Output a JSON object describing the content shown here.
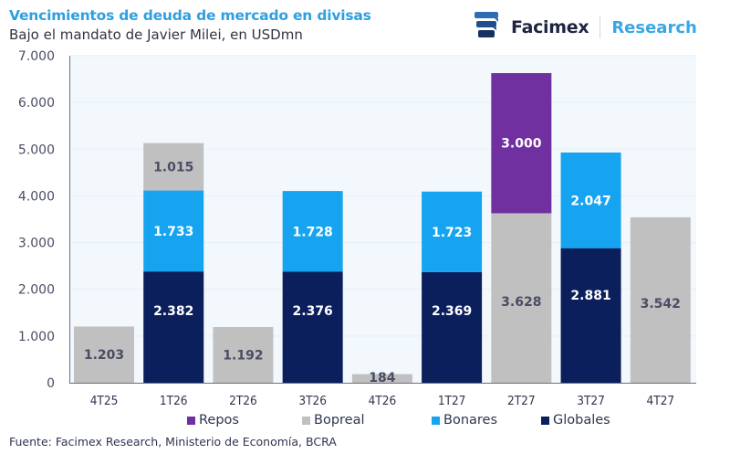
{
  "header": {
    "title": "Vencimientos de deuda de mercado en divisas",
    "subtitle": "Bajo el mandato de Javier Milei, en USDmn"
  },
  "logo": {
    "brand": "Facimex",
    "division": "Research",
    "icon": "facimex-logo-icon"
  },
  "source": "Fuente: Facimex Research, Ministerio de Economía, BCRA",
  "chart_data": {
    "type": "bar",
    "stacked": true,
    "title": "Vencimientos de deuda de mercado en divisas",
    "subtitle": "Bajo el mandato de Javier Milei, en USDmn",
    "xlabel": "",
    "ylabel": "",
    "ylim": [
      0,
      7000
    ],
    "yticks": [
      0,
      1000,
      2000,
      3000,
      4000,
      5000,
      6000,
      7000
    ],
    "ytick_labels": [
      "0",
      "1.000",
      "2.000",
      "3.000",
      "4.000",
      "5.000",
      "6.000",
      "7.000"
    ],
    "grid": true,
    "legend_position": "bottom",
    "categories": [
      "4T25",
      "1T26",
      "2T26",
      "3T26",
      "4T26",
      "1T27",
      "2T27",
      "3T27",
      "4T27"
    ],
    "series": [
      {
        "name": "Globales",
        "color": "#0a1f5c",
        "label_color": "#ffffff",
        "values": [
          0,
          2382,
          0,
          2376,
          0,
          2369,
          0,
          2881,
          0
        ],
        "labels": [
          "",
          "2.382",
          "",
          "2.376",
          "",
          "2.369",
          "",
          "2.881",
          ""
        ]
      },
      {
        "name": "Bonares",
        "color": "#16a4f0",
        "label_color": "#ffffff",
        "values": [
          0,
          1733,
          0,
          1728,
          0,
          1723,
          0,
          2047,
          0
        ],
        "labels": [
          "",
          "1.733",
          "",
          "1.728",
          "",
          "1.723",
          "",
          "2.047",
          ""
        ]
      },
      {
        "name": "Bopreal",
        "color": "#c0c0c0",
        "label_color": "#4a4d63",
        "values": [
          1203,
          1015,
          1192,
          0,
          184,
          0,
          3628,
          0,
          3542
        ],
        "labels": [
          "1.203",
          "1.015",
          "1.192",
          "",
          "184",
          "",
          "3.628",
          "",
          "3.542"
        ]
      },
      {
        "name": "Repos",
        "color": "#7030a0",
        "label_color": "#ffffff",
        "values": [
          0,
          0,
          0,
          0,
          0,
          0,
          3000,
          0,
          0
        ],
        "labels": [
          "",
          "",
          "",
          "",
          "",
          "",
          "3.000",
          "",
          ""
        ]
      }
    ],
    "legend_order": [
      "Repos",
      "Bopreal",
      "Bonares",
      "Globales"
    ]
  }
}
